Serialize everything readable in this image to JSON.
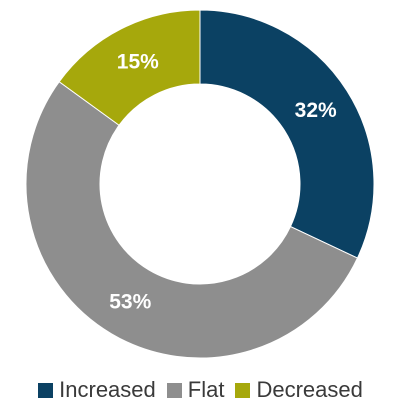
{
  "chart_data": {
    "type": "pie",
    "variant": "donut",
    "slices": [
      {
        "name": "Increased",
        "value": 32,
        "label": "32%",
        "color": "#0b4163"
      },
      {
        "name": "Flat",
        "value": 53,
        "label": "53%",
        "color": "#8e8e8e"
      },
      {
        "name": "Decreased",
        "value": 15,
        "label": "15%",
        "color": "#a6a80c"
      }
    ],
    "start": "top, clockwise",
    "legend_position": "bottom"
  }
}
